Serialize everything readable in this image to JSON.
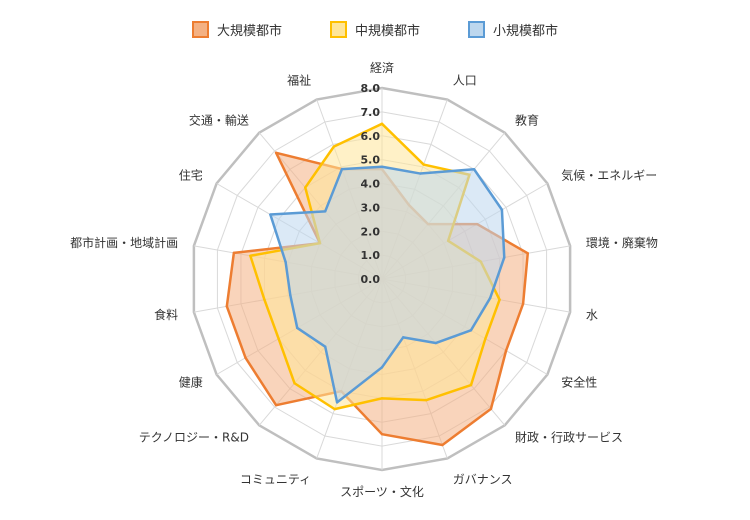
{
  "chart_data": {
    "type": "radar",
    "title": "",
    "legend_position": "top",
    "grid": true,
    "rlim": [
      0,
      8
    ],
    "ticks": [
      "0.0",
      "1.0",
      "2.0",
      "3.0",
      "4.0",
      "5.0",
      "6.0",
      "7.0",
      "8.0"
    ],
    "categories": [
      "経済",
      "人口",
      "教育",
      "気候・エネルギー",
      "環境・廃棄物",
      "水",
      "安全性",
      "財政・行政サービス",
      "ガバナンス",
      "スポーツ・文化",
      "コミュニティ",
      "テクノロジー・R&D",
      "健康",
      "食料",
      "都市計画・地域計画",
      "住宅",
      "交通・輸送",
      "福祉"
    ],
    "series": [
      {
        "name": "大規模都市",
        "stroke": "#ED7D31",
        "fill": "#F4B183",
        "fill_opacity": 0.55,
        "values": [
          4.6,
          3.3,
          3.0,
          4.6,
          6.2,
          6.0,
          6.0,
          7.1,
          7.4,
          6.5,
          5.0,
          6.9,
          6.6,
          6.6,
          6.3,
          3.0,
          6.9,
          4.9
        ]
      },
      {
        "name": "中規模都市",
        "stroke": "#FFC000",
        "fill": "#FFE699",
        "fill_opacity": 0.55,
        "values": [
          6.5,
          5.1,
          5.7,
          3.2,
          4.2,
          5.0,
          5.0,
          5.8,
          5.4,
          5.0,
          5.8,
          5.7,
          5.0,
          5.0,
          5.6,
          3.0,
          5.0,
          5.9
        ]
      },
      {
        "name": "小規模都市",
        "stroke": "#5B9BD5",
        "fill": "#BDD7EE",
        "fill_opacity": 0.55,
        "values": [
          4.7,
          4.7,
          6.0,
          5.8,
          5.2,
          4.6,
          4.3,
          3.5,
          2.6,
          3.7,
          5.5,
          3.7,
          4.1,
          3.9,
          4.1,
          5.4,
          3.7,
          4.9
        ]
      }
    ]
  }
}
